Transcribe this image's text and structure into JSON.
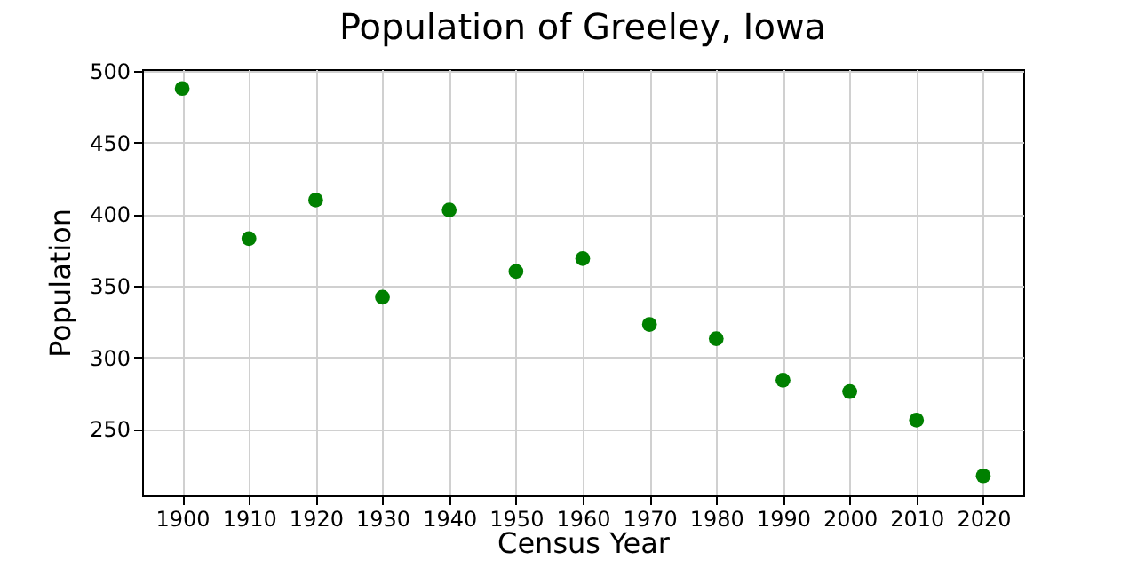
{
  "chart_data": {
    "type": "scatter",
    "title": "Population of Greeley, Iowa",
    "xlabel": "Census Year",
    "ylabel": "Population",
    "x": [
      1900,
      1910,
      1920,
      1930,
      1940,
      1950,
      1960,
      1970,
      1980,
      1990,
      2000,
      2010,
      2020
    ],
    "series": [
      {
        "color": "#008000",
        "values": [
          488,
          383,
          410,
          342,
          403,
          360,
          369,
          323,
          313,
          284,
          276,
          256,
          217
        ]
      }
    ],
    "xlim": [
      1894,
      2026
    ],
    "xticks": [
      1900,
      1910,
      1920,
      1930,
      1940,
      1950,
      1960,
      1970,
      1980,
      1990,
      2000,
      2010,
      2020
    ],
    "ylim": [
      203.5,
      501.5
    ],
    "yticks": [
      250,
      300,
      350,
      400,
      450,
      500
    ],
    "grid": true,
    "marker": "circle"
  }
}
